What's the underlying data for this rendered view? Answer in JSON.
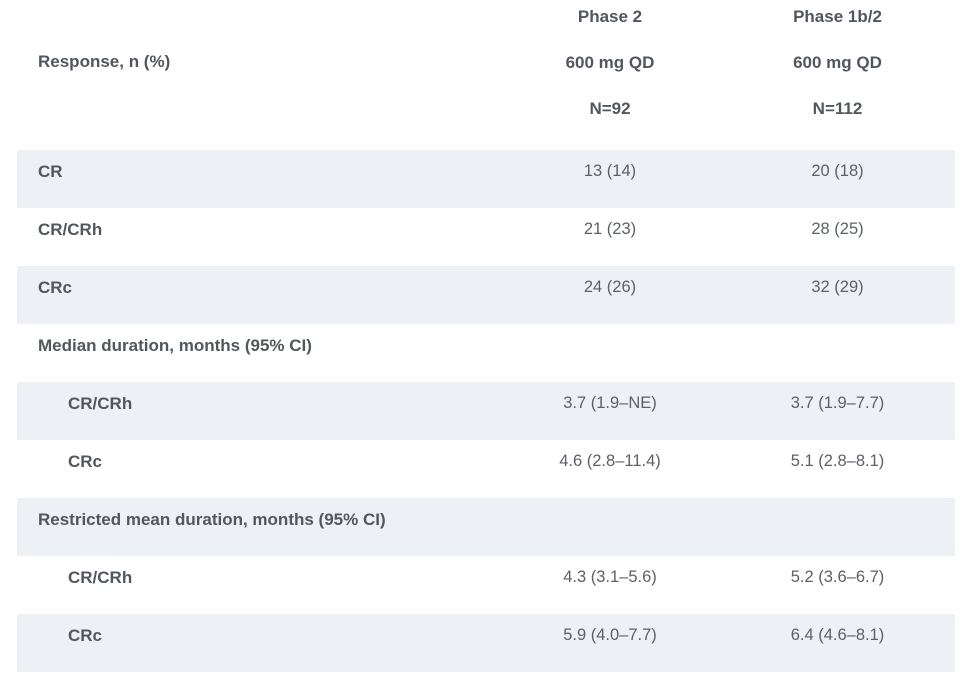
{
  "table": {
    "title_cell": "Response, n (%)",
    "columns": [
      {
        "phase": "Phase 2",
        "dose": "600 mg QD",
        "n": "N=92"
      },
      {
        "phase": "Phase 1b/2",
        "dose": "600 mg QD",
        "n": "N=112"
      }
    ],
    "rows": [
      {
        "label": "CR",
        "values": [
          "13 (14)",
          "20 (18)"
        ]
      },
      {
        "label": "CR/CRh",
        "values": [
          "21 (23)",
          "28 (25)"
        ]
      },
      {
        "label": "CRc",
        "values": [
          "24 (26)",
          "32 (29)"
        ]
      },
      {
        "label": "Median duration, months (95% CI)",
        "values": [
          "",
          ""
        ]
      },
      {
        "label": "CR/CRh",
        "values": [
          "3.7 (1.9–NE)",
          "3.7 (1.9–7.7)"
        ]
      },
      {
        "label": "CRc",
        "values": [
          "4.6 (2.8–11.4)",
          "5.1 (2.8–8.1)"
        ]
      },
      {
        "label": "Restricted mean duration, months (95% CI)",
        "values": [
          "",
          ""
        ]
      },
      {
        "label": "CR/CRh",
        "values": [
          "4.3 (3.1–5.6)",
          "5.2 (3.6–6.7)"
        ]
      },
      {
        "label": "CRc",
        "values": [
          "5.9 (4.0–7.7)",
          "6.4 (4.6–8.1)"
        ]
      }
    ],
    "colors": {
      "stripe": "#edf0f5",
      "label_text": "#51575d",
      "value_text": "#5c6167",
      "background": "#ffffff"
    }
  },
  "chart_data": {
    "type": "table",
    "title": "Response, n (%)",
    "columns": [
      "Phase 2 600 mg QD N=92",
      "Phase 1b/2 600 mg QD N=112"
    ],
    "rows": [
      [
        "CR",
        "13 (14)",
        "20 (18)"
      ],
      [
        "CR/CRh",
        "21 (23)",
        "28 (25)"
      ],
      [
        "CRc",
        "24 (26)",
        "32 (29)"
      ],
      [
        "Median duration, months (95% CI)",
        "",
        ""
      ],
      [
        "CR/CRh",
        "3.7 (1.9–NE)",
        "3.7 (1.9–7.7)"
      ],
      [
        "CRc",
        "4.6 (2.8–11.4)",
        "5.1 (2.8–8.1)"
      ],
      [
        "Restricted mean duration, months (95% CI)",
        "",
        ""
      ],
      [
        "CR/CRh",
        "4.3 (3.1–5.6)",
        "5.2 (3.6–6.7)"
      ],
      [
        "CRc",
        "5.9 (4.0–7.7)",
        "6.4 (4.6–8.1)"
      ]
    ]
  }
}
